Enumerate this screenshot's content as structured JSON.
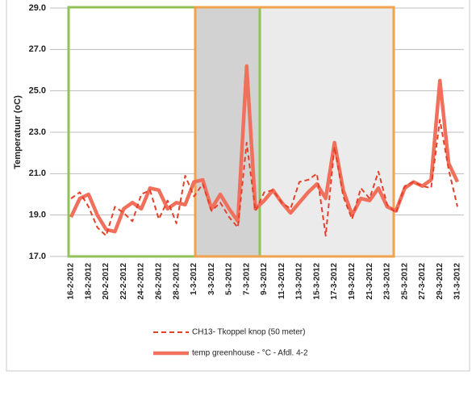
{
  "chart_data": {
    "type": "line",
    "y_label": "Temperatuur (oC)",
    "categories": [
      "16-2-2012",
      null,
      "18-2-2012",
      null,
      "20-2-2012",
      null,
      "22-2-2012",
      null,
      "24-2-2012",
      null,
      "26-2-2012",
      null,
      "28-2-2012",
      null,
      "1-3-2012",
      null,
      "3-3-2012",
      null,
      "5-3-2012",
      null,
      "7-3-2012",
      null,
      "9-3-2012",
      null,
      "11-3-2012",
      null,
      "13-3-2012",
      null,
      "15-3-2012",
      null,
      "17-3-2012",
      null,
      "19-3-2012",
      null,
      "21-3-2012",
      null,
      "23-3-2012",
      null,
      "25-3-2012",
      null,
      "27-3-2012",
      null,
      "29-3-2012",
      null,
      "31-3-2012"
    ],
    "series": [
      {
        "name": "CH13- Tkoppel knop (50 meter)",
        "color": "#e4412a",
        "dash": true,
        "values": [
          19.8,
          20.1,
          19.4,
          18.4,
          18.0,
          19.4,
          19.1,
          18.7,
          20.0,
          20.2,
          18.8,
          19.7,
          18.6,
          20.9,
          19.9,
          20.5,
          19.2,
          19.6,
          18.9,
          18.4,
          22.5,
          19.2,
          20.1,
          20.2,
          19.6,
          19.3,
          20.6,
          20.7,
          21.0,
          18.0,
          22.3,
          19.9,
          18.8,
          20.3,
          19.8,
          21.1,
          19.5,
          19.1,
          20.4,
          20.6,
          20.4,
          20.3,
          23.6,
          21.2,
          19.4
        ]
      },
      {
        "name": "temp greenhouse - °C -  Afdl. 4-2",
        "color": "#f0705c",
        "dash": false,
        "values": [
          18.9,
          19.8,
          20.0,
          19.0,
          18.3,
          18.2,
          19.3,
          19.6,
          19.3,
          20.3,
          20.2,
          19.3,
          19.6,
          19.5,
          20.6,
          20.7,
          19.3,
          20.0,
          19.3,
          18.7,
          26.2,
          19.3,
          19.7,
          20.2,
          19.6,
          19.1,
          19.6,
          20.1,
          20.5,
          19.8,
          22.5,
          20.2,
          19.0,
          19.8,
          19.7,
          20.3,
          19.4,
          19.2,
          20.3,
          20.6,
          20.4,
          20.7,
          25.5,
          21.5,
          20.6
        ]
      }
    ],
    "ylim": [
      17,
      29
    ],
    "yticks": [
      {
        "value": 17,
        "label": "17.0"
      },
      {
        "value": 19,
        "label": "19.0"
      },
      {
        "value": 21,
        "label": "21.0"
      },
      {
        "value": 23,
        "label": "23.0"
      },
      {
        "value": 25,
        "label": "25.0"
      },
      {
        "value": 27,
        "label": "27.0"
      },
      {
        "value": 29,
        "label": "29.0"
      }
    ],
    "grid": true,
    "legend": "bottom"
  }
}
